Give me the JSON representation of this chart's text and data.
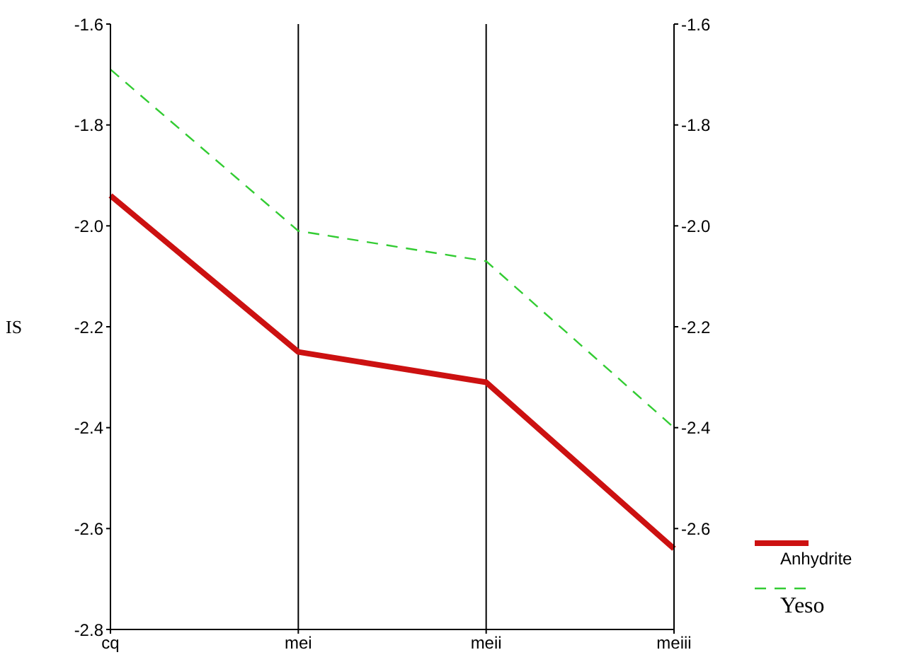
{
  "chart_data": {
    "type": "line",
    "ylabel": "IS",
    "categories": [
      "cq",
      "mei",
      "meii",
      "meiii"
    ],
    "series": [
      {
        "name": "Anhydrite",
        "color": "#cc1111",
        "values": [
          -1.94,
          -2.25,
          -2.31,
          -2.64
        ],
        "line_style": "solid"
      },
      {
        "name": "Yeso",
        "color": "#33cc33",
        "values": [
          -1.69,
          -2.01,
          -2.07,
          -2.4
        ],
        "line_style": "dashed"
      }
    ],
    "ylim": [
      -2.8,
      -1.6
    ],
    "yticks": [
      -2.8,
      -2.6,
      -2.4,
      -2.2,
      {
        "value": -2,
        "label": "-2.0"
      },
      -1.8,
      -1.6
    ],
    "y2lim": [
      -2.8,
      -1.6
    ],
    "y2ticks": [
      -2.6,
      -2.4,
      -2.2,
      {
        "value": -2,
        "label": "-2.0"
      },
      -1.8,
      -1.6
    ],
    "grid": "x",
    "legend": "bottom right",
    "marker": "none"
  }
}
